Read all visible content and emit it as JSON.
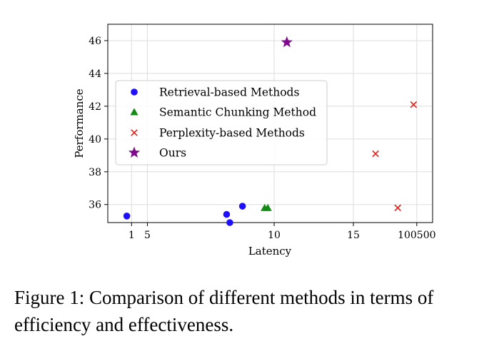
{
  "chart_data": {
    "type": "scatter",
    "title": "",
    "xlabel": "Latency",
    "ylabel": "Performance",
    "ylim": [
      34.9,
      47.0
    ],
    "y_ticks": [
      36,
      38,
      40,
      42,
      44,
      46
    ],
    "x_tick_labels": [
      "1",
      "5",
      "10",
      "15",
      "100500"
    ],
    "grid": true,
    "legend_position": "center-left",
    "series": [
      {
        "name": "Retrieval-based Methods",
        "marker": "circle",
        "color": "#1f0fff",
        "points": [
          {
            "x": 0.7,
            "y": 35.3
          },
          {
            "x": 7.0,
            "y": 35.4
          },
          {
            "x": 7.2,
            "y": 34.9
          },
          {
            "x": 8.0,
            "y": 35.9
          }
        ]
      },
      {
        "name": "Semantic Chunking Method",
        "marker": "triangle",
        "color": "#148c14",
        "points": [
          {
            "x": 9.4,
            "y": 35.8
          },
          {
            "x": 9.6,
            "y": 35.8
          }
        ]
      },
      {
        "name": "Perplexity-based Methods",
        "marker": "x",
        "color": "#e0201a",
        "points": [
          {
            "x": 16.4,
            "y": 39.1
          },
          {
            "x": 17.8,
            "y": 35.8
          },
          {
            "x": 18.8,
            "y": 42.1
          }
        ]
      },
      {
        "name": "Ours",
        "marker": "star",
        "color": "#800a8c",
        "points": [
          {
            "x": 10.8,
            "y": 45.9
          }
        ]
      }
    ]
  },
  "caption": "Figure 1: Comparison of different methods in terms of efficiency and effectiveness."
}
